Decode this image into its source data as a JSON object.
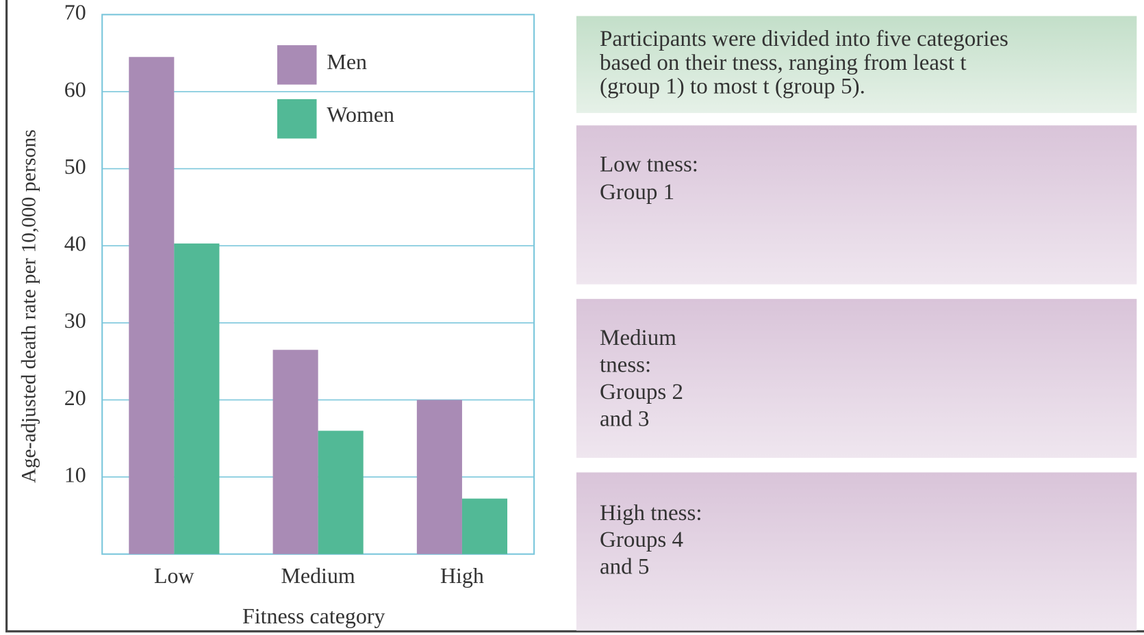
{
  "chart_data": {
    "type": "bar",
    "y_label": "Age-adjusted death rate per 10,000 persons",
    "x_label": "Fitness category",
    "categories": [
      "Low",
      "Medium",
      "High"
    ],
    "series": [
      {
        "name": "Men",
        "color": "#a98bb5",
        "values": [
          64.5,
          26.5,
          20
        ]
      },
      {
        "name": "Women",
        "color": "#52b996",
        "values": [
          40.3,
          16,
          7.2
        ]
      }
    ],
    "ylim": [
      0,
      70
    ],
    "yticks": [
      10,
      20,
      30,
      40,
      50,
      60,
      70
    ],
    "grid": true
  },
  "panels": [
    {
      "lines": [
        "Participants were divided into five categories",
        "based on their tness, ranging from least t",
        "(group 1) to most t (group 5)."
      ]
    },
    {
      "lines": [
        "Low tness:",
        "Group 1"
      ]
    },
    {
      "lines": [
        "Medium",
        "tness:",
        "Groups 2",
        "and 3"
      ]
    },
    {
      "lines": [
        "High tness:",
        "Groups 4",
        "and 5"
      ]
    }
  ]
}
